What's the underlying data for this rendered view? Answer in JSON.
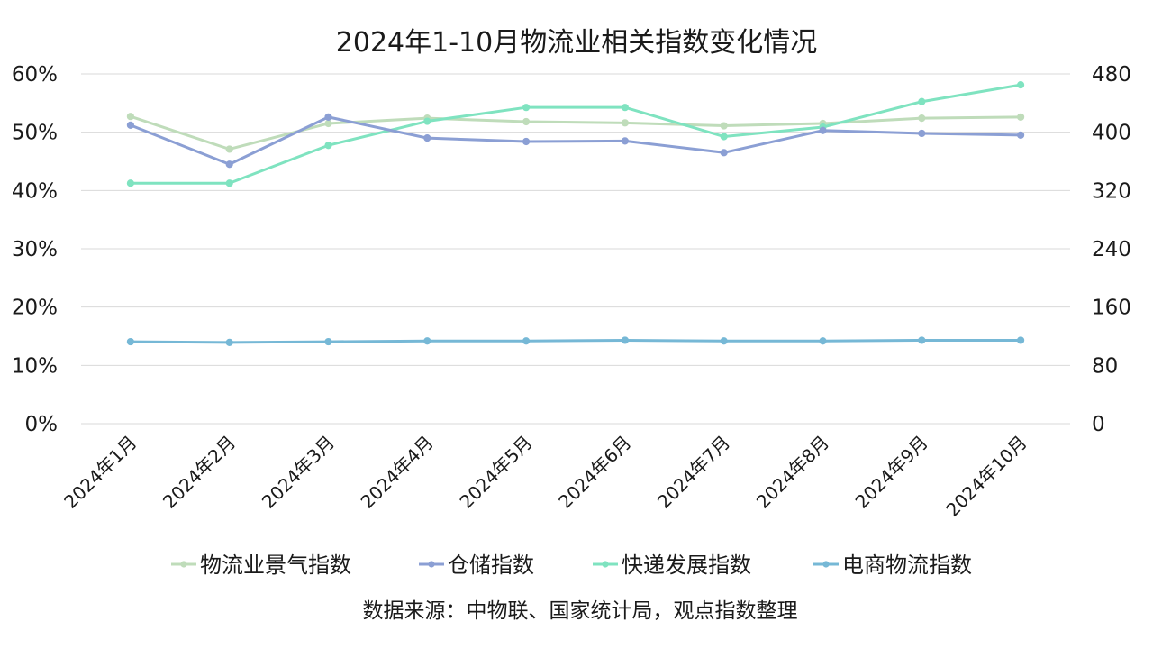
{
  "chart_data": {
    "type": "line",
    "title": "2024年1-10月物流业相关指数变化情况",
    "source_note": "数据来源：中物联、国家统计局，观点指数整理",
    "categories": [
      "2024年1月",
      "2024年2月",
      "2024年3月",
      "2024年4月",
      "2024年5月",
      "2024年6月",
      "2024年7月",
      "2024年8月",
      "2024年9月",
      "2024年10月"
    ],
    "y_left": {
      "min": 0,
      "max": 60,
      "ticks": [
        "0%",
        "10%",
        "20%",
        "30%",
        "40%",
        "50%",
        "60%"
      ]
    },
    "y_right": {
      "min": 0,
      "max": 480,
      "ticks": [
        "0",
        "80",
        "160",
        "240",
        "320",
        "400",
        "480"
      ]
    },
    "grid": true,
    "legend_position": "bottom",
    "series": [
      {
        "name": "物流业景气指数",
        "axis": "left",
        "color": "#bfdcba",
        "values": [
          52.7,
          47.1,
          51.5,
          52.4,
          51.8,
          51.6,
          51.1,
          51.5,
          52.4,
          52.6
        ]
      },
      {
        "name": "仓储指数",
        "axis": "left",
        "color": "#8b9fd4",
        "values": [
          51.2,
          44.5,
          52.6,
          49.0,
          48.4,
          48.5,
          46.5,
          50.3,
          49.8,
          49.5
        ]
      },
      {
        "name": "快递发展指数",
        "axis": "right",
        "color": "#7fe3c0",
        "values": [
          330,
          330,
          382,
          415,
          434,
          434,
          394,
          407,
          442,
          465
        ]
      },
      {
        "name": "电商物流指数",
        "axis": "right",
        "color": "#76b8d6",
        "values": [
          112.5,
          111.5,
          112.5,
          113.5,
          113.5,
          114.5,
          113.5,
          113.5,
          114.5,
          114.5
        ]
      }
    ]
  }
}
